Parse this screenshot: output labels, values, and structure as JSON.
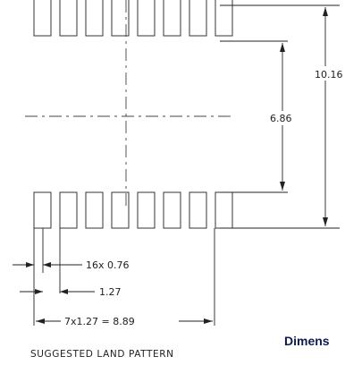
{
  "drawing": {
    "title": "SUGGESTED LAND PATTERN",
    "dim_row_span": "10.16",
    "dim_row_gap": "6.86",
    "dim_pad_width": "16x 0.76",
    "dim_pitch": "1.27",
    "dim_total_pitch": "7x1.27 = 8.89",
    "cut_label": "Dimens"
  },
  "pads": {
    "count_per_row": 8,
    "rows": 2
  }
}
